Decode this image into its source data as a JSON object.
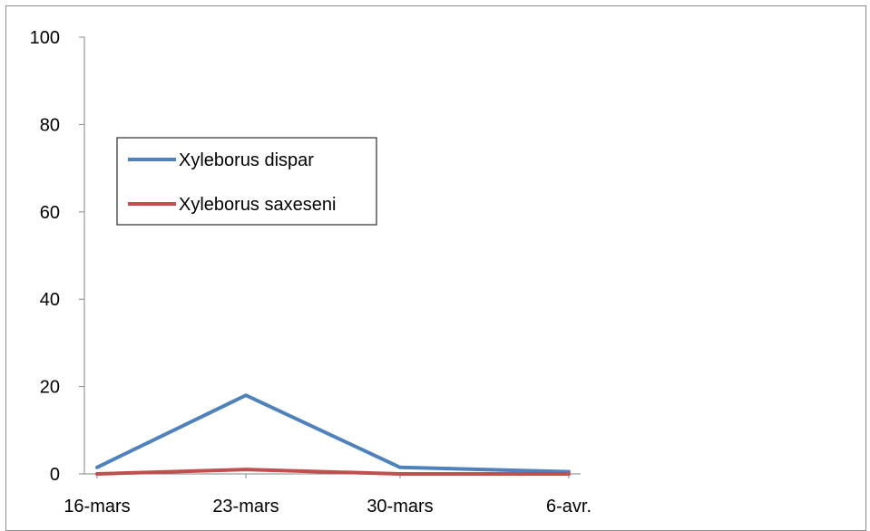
{
  "chart_data": {
    "type": "line",
    "categories": [
      "16-mars",
      "23-mars",
      "30-mars",
      "6-avr."
    ],
    "series": [
      {
        "name": "Xyleborus dispar",
        "values": [
          1.5,
          18,
          1.5,
          0.5
        ],
        "color": "#4f81bd"
      },
      {
        "name": "Xyleborus saxeseni",
        "values": [
          0,
          1,
          0,
          0
        ],
        "color": "#c0504d"
      }
    ],
    "ylim": [
      0,
      100
    ],
    "yticks": [
      "0",
      "20",
      "40",
      "60",
      "80",
      "100"
    ],
    "grid": false,
    "legend_position": "top-left"
  }
}
